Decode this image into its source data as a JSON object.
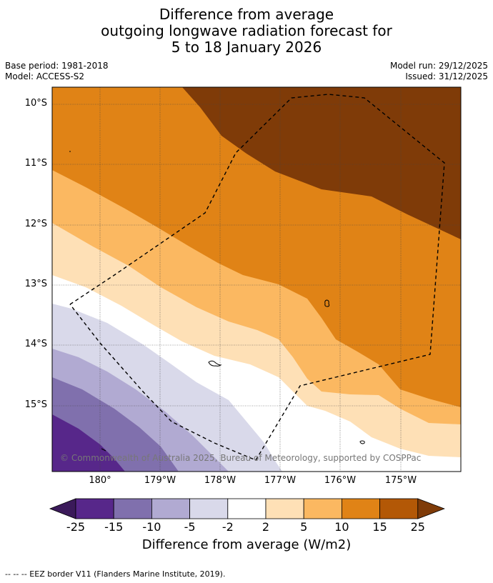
{
  "title": {
    "line1": "Difference from average",
    "line2": "outgoing longwave radiation forecast for",
    "line3": "5 to 18 January 2026"
  },
  "meta": {
    "base_period": "Base period: 1981-2018",
    "model": "Model: ACCESS-S2",
    "model_run": "Model run: 29/12/2025",
    "issued": "Issued: 31/12/2025"
  },
  "map": {
    "lat_labels": [
      "10°S",
      "11°S",
      "12°S",
      "13°S",
      "14°S",
      "15°S"
    ],
    "lon_labels": [
      "180°",
      "179°W",
      "178°W",
      "177°W",
      "176°W",
      "175°W"
    ],
    "copyright": "© Commonwealth of Australia 2025, Bureau of Meteorology, supported by COSPPac",
    "eez_border": "EEZ border V11"
  },
  "colorbar": {
    "ticks": [
      "-25",
      "-15",
      "-10",
      "-5",
      "-2",
      "2",
      "5",
      "10",
      "15",
      "25"
    ],
    "label": "Difference from average (W/m2)",
    "colors": [
      "#3b1a5a",
      "#57278a",
      "#8070ad",
      "#b1aad2",
      "#d9d9ea",
      "#ffffff",
      "#fee0b6",
      "#fbb861",
      "#e08316",
      "#b35806",
      "#7f3b08"
    ]
  },
  "footnote": "--  --  -- EEZ border V11 (Flanders Marine Institute, 2019)."
}
